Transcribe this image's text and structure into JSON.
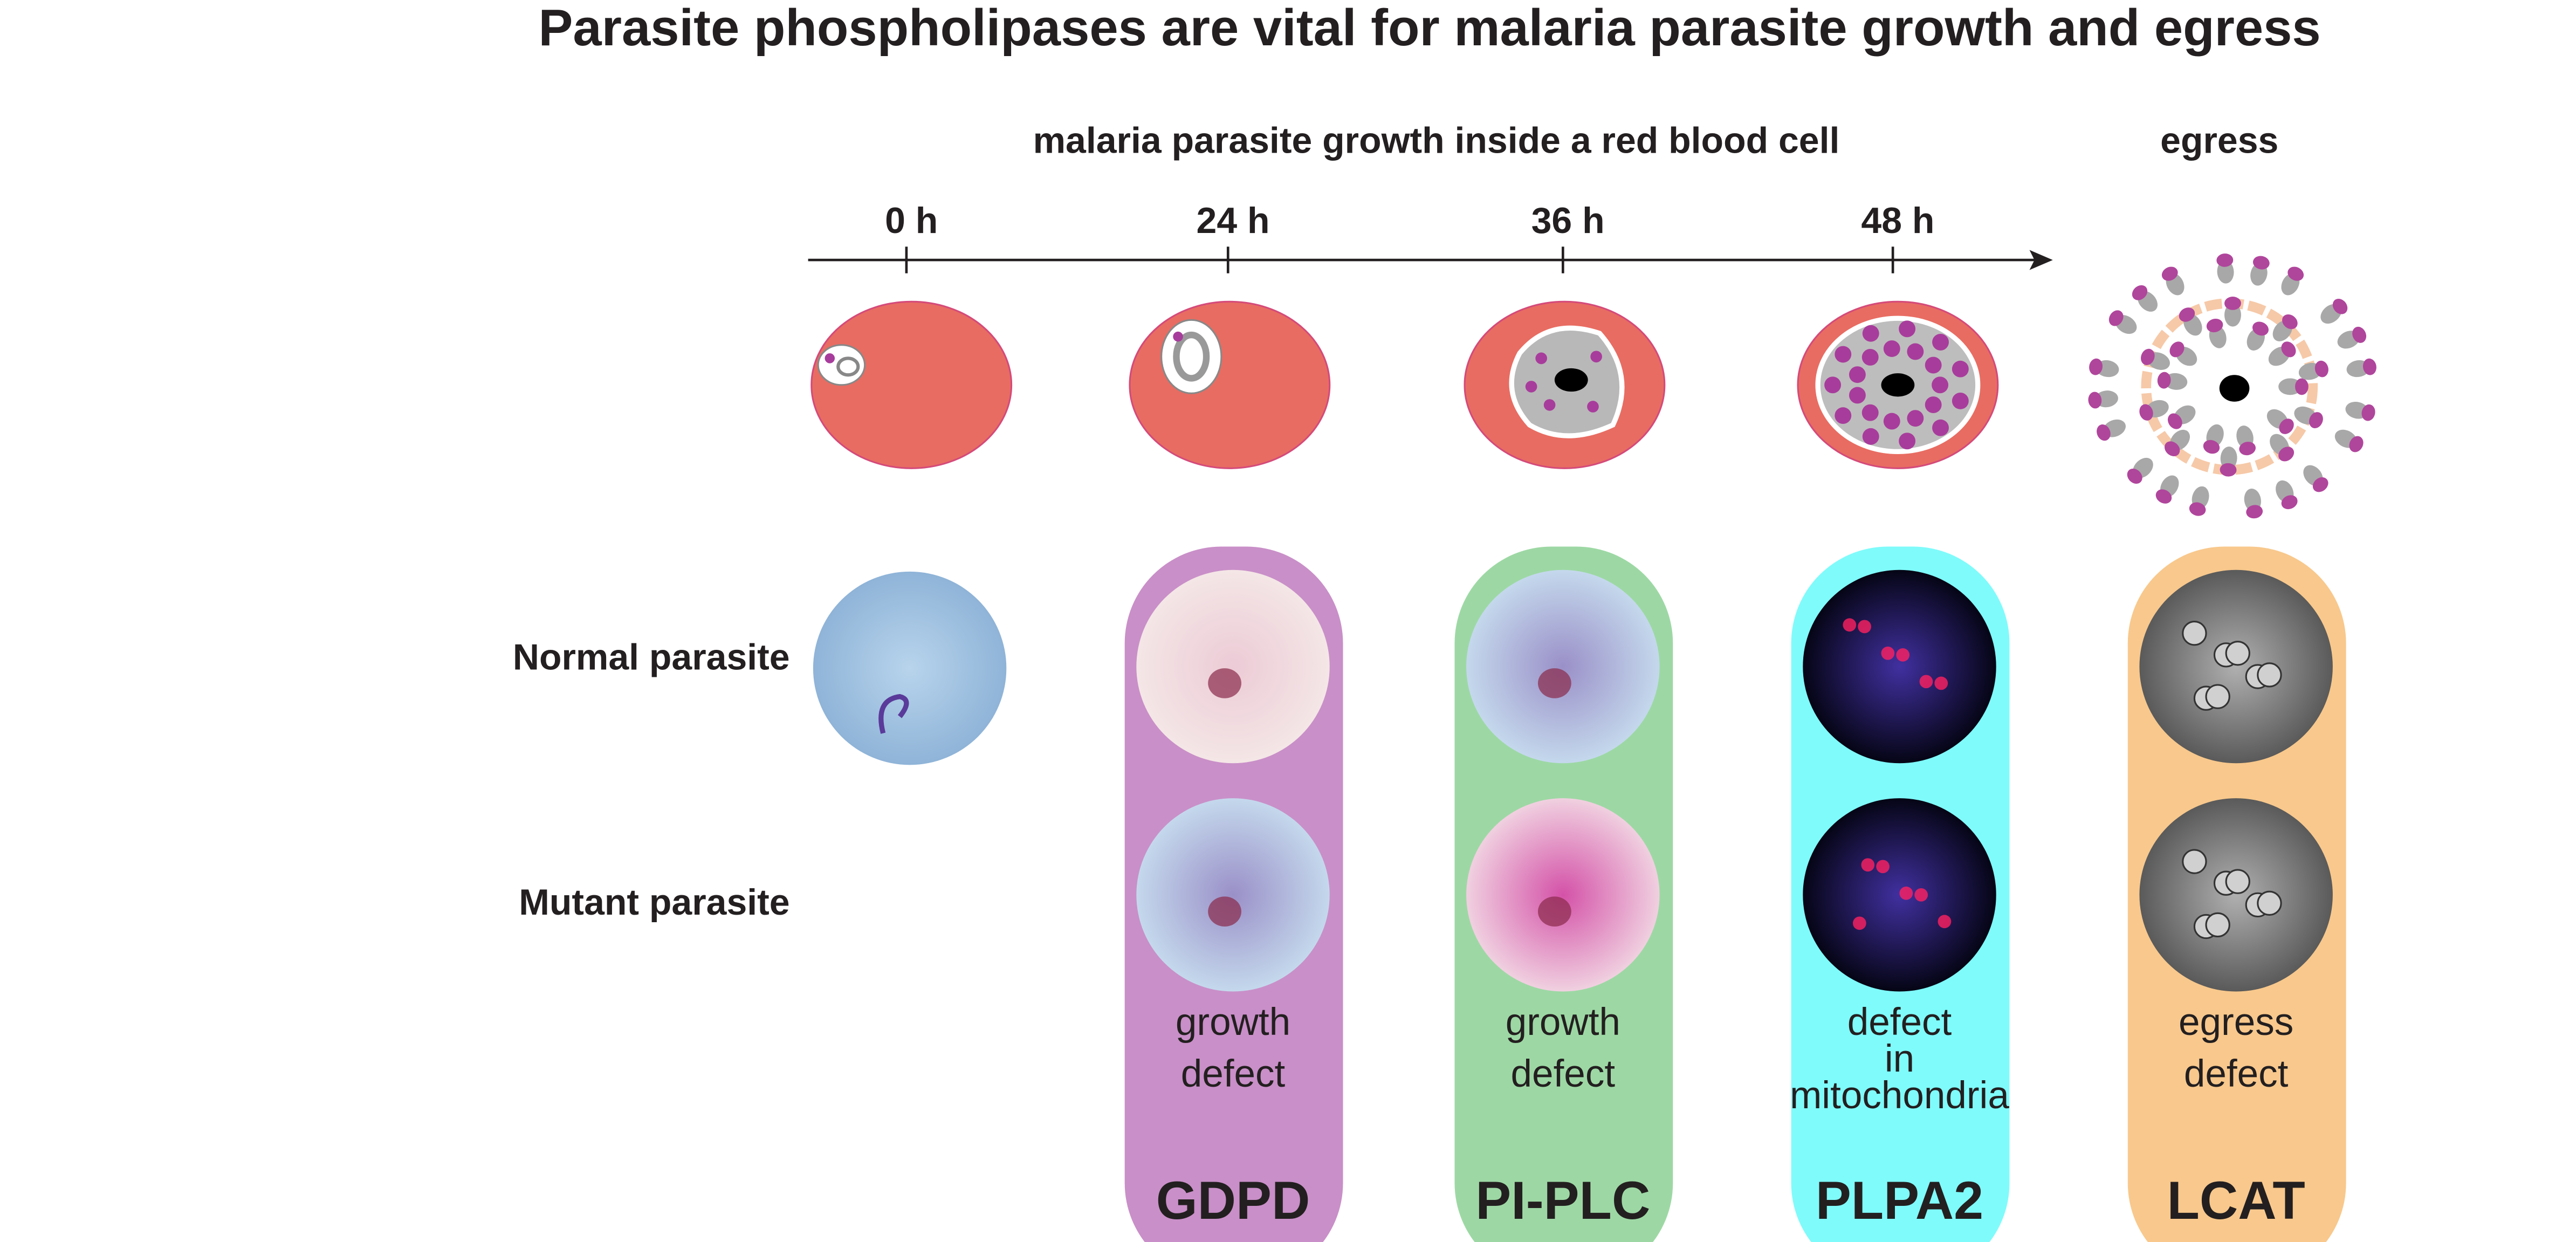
{
  "title": "Parasite phospholipases are vital for malaria parasite growth and egress",
  "timeline": {
    "label": "malaria parasite growth inside a red blood cell",
    "egress_label": "egress",
    "ticks": [
      "0 h",
      "24 h",
      "36 h",
      "48 h"
    ]
  },
  "rows": [
    "Normal parasite",
    "Mutant parasite"
  ],
  "panels": [
    {
      "name": "GDPD",
      "caption": [
        "growth",
        "defect"
      ]
    },
    {
      "name": "PI-PLC",
      "caption": [
        "growth",
        "defect"
      ]
    },
    {
      "name": "PLPA2",
      "caption": [
        "defect",
        "in",
        "mitochondria"
      ]
    },
    {
      "name": "LCAT",
      "caption": [
        "egress",
        "defect"
      ]
    }
  ]
}
